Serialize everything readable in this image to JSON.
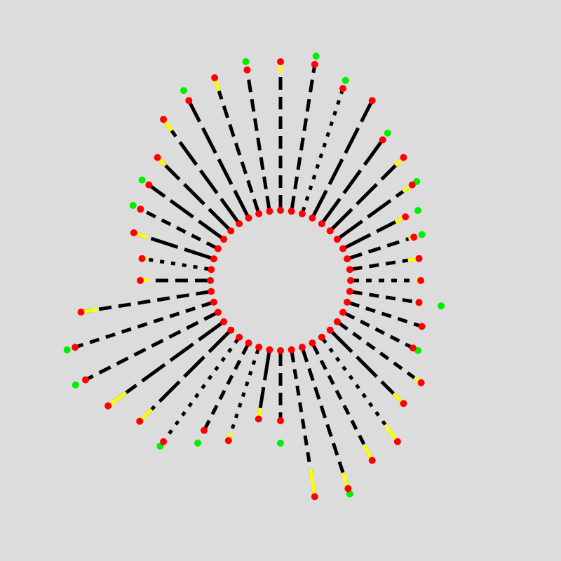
{
  "colors": {
    "background": "#dcdcdc",
    "dash": "#000000",
    "extension": "#ffff00",
    "inner_marker": "#ff0000",
    "outer_marker": "#ff0000",
    "tip_marker": "#00ee00"
  },
  "ring": {
    "spoke_count": 40,
    "rays": [
      {
        "outer": 0.5,
        "extension": 0.02,
        "tip": 0.0,
        "dash": "short"
      },
      {
        "outer": 0.5,
        "extension": 0.0,
        "tip": 0.08,
        "dash": "medium"
      },
      {
        "outer": 0.53,
        "extension": 0.0,
        "tip": 0.0,
        "dash": "medium"
      },
      {
        "outer": 0.53,
        "extension": 0.0,
        "tip": 0.02,
        "dash": "medium"
      },
      {
        "outer": 0.62,
        "extension": 0.03,
        "tip": 0.0,
        "dash": "medium"
      },
      {
        "outer": 0.62,
        "extension": 0.05,
        "tip": 0.0,
        "dash": "long"
      },
      {
        "outer": 0.71,
        "extension": 0.07,
        "tip": 0.0,
        "dash": "dots"
      },
      {
        "outer": 0.72,
        "extension": 0.06,
        "tip": 0.0,
        "dash": "medium"
      },
      {
        "outer": 0.78,
        "extension": 0.06,
        "tip": 0.02,
        "dash": "dash"
      },
      {
        "outer": 0.78,
        "extension": 0.1,
        "tip": 0.0,
        "dash": "medium"
      },
      {
        "outer": 0.5,
        "extension": 0.0,
        "tip": 0.08,
        "dash": "dash"
      },
      {
        "outer": 0.5,
        "extension": 0.04,
        "tip": 0.0,
        "dash": "long"
      },
      {
        "outer": 0.6,
        "extension": 0.03,
        "tip": 0.0,
        "dash": "dots"
      },
      {
        "outer": 0.6,
        "extension": 0.0,
        "tip": 0.05,
        "dash": "medium"
      },
      {
        "outer": 0.71,
        "extension": 0.0,
        "tip": 0.02,
        "dash": "dots"
      },
      {
        "outer": 0.71,
        "extension": 0.06,
        "tip": 0.0,
        "dash": "long"
      },
      {
        "outer": 0.76,
        "extension": 0.08,
        "tip": 0.0,
        "dash": "long"
      },
      {
        "outer": 0.78,
        "extension": 0.0,
        "tip": 0.04,
        "dash": "dash"
      },
      {
        "outer": 0.77,
        "extension": 0.0,
        "tip": 0.03,
        "dash": "medium"
      },
      {
        "outer": 0.72,
        "extension": 0.06,
        "tip": 0.0,
        "dash": "dash"
      },
      {
        "outer": 0.5,
        "extension": 0.03,
        "tip": 0.0,
        "dash": "dash"
      },
      {
        "outer": 0.5,
        "extension": 0.02,
        "tip": 0.0,
        "dash": "dots"
      },
      {
        "outer": 0.55,
        "extension": 0.05,
        "tip": 0.0,
        "dash": "long"
      },
      {
        "outer": 0.56,
        "extension": 0.0,
        "tip": 0.03,
        "dash": "medium"
      },
      {
        "outer": 0.58,
        "extension": 0.0,
        "tip": 0.03,
        "dash": "long"
      },
      {
        "outer": 0.62,
        "extension": 0.04,
        "tip": 0.0,
        "dash": "long"
      },
      {
        "outer": 0.71,
        "extension": 0.05,
        "tip": 0.0,
        "dash": "long"
      },
      {
        "outer": 0.72,
        "extension": 0.0,
        "tip": 0.04,
        "dash": "long"
      },
      {
        "outer": 0.76,
        "extension": 0.05,
        "tip": 0.0,
        "dash": "dash"
      },
      {
        "outer": 0.76,
        "extension": 0.0,
        "tip": 0.03,
        "dash": "dash"
      },
      {
        "outer": 0.78,
        "extension": 0.04,
        "tip": 0.0,
        "dash": "dash"
      },
      {
        "outer": 0.78,
        "extension": 0.0,
        "tip": 0.03,
        "dash": "dash"
      },
      {
        "outer": 0.72,
        "extension": 0.0,
        "tip": 0.03,
        "dash": "dots"
      },
      {
        "outer": 0.72,
        "extension": 0.0,
        "tip": 0.0,
        "dash": "long"
      },
      {
        "outer": 0.62,
        "extension": 0.0,
        "tip": 0.03,
        "dash": "long"
      },
      {
        "outer": 0.62,
        "extension": 0.04,
        "tip": 0.0,
        "dash": "long"
      },
      {
        "outer": 0.58,
        "extension": 0.04,
        "tip": 0.02,
        "dash": "long"
      },
      {
        "outer": 0.5,
        "extension": 0.04,
        "tip": 0.05,
        "dash": "long"
      },
      {
        "outer": 0.5,
        "extension": 0.02,
        "tip": 0.03,
        "dash": "dash"
      },
      {
        "outer": 0.5,
        "extension": 0.04,
        "tip": 0.0,
        "dash": "medium"
      }
    ]
  }
}
